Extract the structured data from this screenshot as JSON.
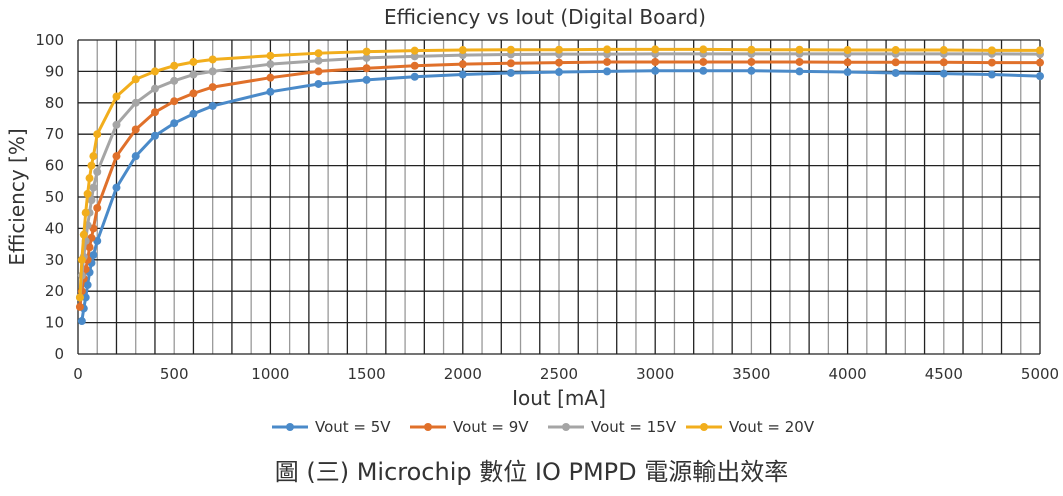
{
  "chart_data": {
    "type": "line",
    "title": "Efficiency vs Iout (Digital Board)",
    "xlabel": "Iout [mA]",
    "ylabel": "Efficiency [%]",
    "xlim": [
      0,
      5000
    ],
    "ylim": [
      0,
      100
    ],
    "xticks": [
      0,
      500,
      1000,
      1500,
      2000,
      2500,
      3000,
      3500,
      4000,
      4500,
      5000
    ],
    "yticks": [
      0,
      10,
      20,
      30,
      40,
      50,
      60,
      70,
      80,
      90,
      100
    ],
    "grid": true,
    "legend": "bottom",
    "x": [
      10,
      20,
      30,
      40,
      50,
      60,
      70,
      80,
      100,
      200,
      300,
      400,
      500,
      600,
      700,
      1000,
      1250,
      1500,
      1750,
      2000,
      2250,
      2500,
      2750,
      3000,
      3250,
      3500,
      3750,
      4000,
      4250,
      4500,
      4750,
      5000
    ],
    "series": [
      {
        "name": "Vout = 5V",
        "color": "#4a8ac9",
        "values": [
          null,
          10.5,
          14.5,
          18,
          22,
          26,
          29,
          31.5,
          36,
          53,
          63,
          69.5,
          73.5,
          76.5,
          79,
          83.5,
          86,
          87.3,
          88.3,
          89,
          89.5,
          89.8,
          90,
          90.2,
          90.2,
          90.2,
          90,
          89.8,
          89.5,
          89.3,
          89,
          88.5
        ]
      },
      {
        "name": "Vout = 9V",
        "color": "#e0702a",
        "values": [
          15,
          20,
          24,
          27,
          30,
          34,
          37,
          40,
          46.5,
          63,
          71.5,
          77,
          80.5,
          83,
          85,
          88,
          90,
          91,
          91.8,
          92.3,
          92.6,
          92.8,
          93,
          93,
          93,
          93,
          93,
          92.9,
          92.9,
          92.9,
          92.8,
          92.8
        ]
      },
      {
        "name": "Vout = 15V",
        "color": "#a5a5a5",
        "values": [
          18,
          25,
          31,
          36,
          41,
          45,
          49,
          53,
          58,
          73,
          80,
          84.5,
          87,
          89,
          90,
          92.3,
          93.4,
          94.3,
          94.8,
          95.2,
          95.4,
          95.5,
          95.5,
          95.6,
          95.6,
          95.6,
          95.6,
          95.6,
          95.6,
          95.6,
          95.6,
          95.5
        ]
      },
      {
        "name": "Vout = 20V",
        "color": "#f2ae1c",
        "values": [
          18,
          30,
          38,
          45,
          51,
          56,
          60,
          63,
          70,
          82,
          87.5,
          90,
          91.8,
          93,
          93.8,
          95,
          95.8,
          96.3,
          96.6,
          96.8,
          96.9,
          96.9,
          97,
          97,
          97,
          96.9,
          96.9,
          96.8,
          96.8,
          96.8,
          96.7,
          96.7
        ]
      }
    ]
  },
  "caption": "圖 (三) Microchip 數位 IO PMPD 電源輸出效率"
}
